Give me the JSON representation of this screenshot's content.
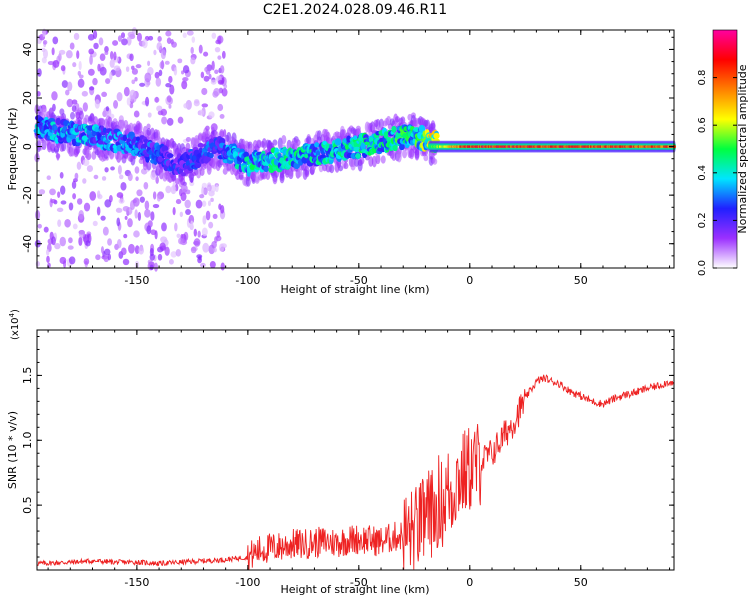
{
  "title": "C2E1.2024.028.09.46.R11",
  "chart_data": [
    {
      "type": "heatmap",
      "xlabel": "Height of straight line (km)",
      "ylabel": "Frequency (Hz)",
      "xlim": [
        -195,
        92
      ],
      "ylim": [
        -50,
        48
      ],
      "xticks": [
        -150,
        -100,
        -50,
        0,
        50
      ],
      "yticks": [
        -40,
        -20,
        0,
        20,
        40
      ],
      "colorbar": {
        "label": "Normalized spectral amplitude",
        "range": [
          0,
          1
        ],
        "ticks": [
          "0.0",
          "0.2",
          "0.4",
          "0.6",
          "0.8"
        ],
        "colors": [
          "#ffffff",
          "#9b30ff",
          "#2020ff",
          "#00e5ff",
          "#00ff40",
          "#ffff00",
          "#ff8000",
          "#ff0000",
          "#ff00a0"
        ]
      },
      "ridge": [
        {
          "x": -195,
          "freq": 8,
          "amp": 0.3
        },
        {
          "x": -175,
          "freq": 5,
          "amp": 0.3
        },
        {
          "x": -150,
          "freq": 1,
          "amp": 0.25
        },
        {
          "x": -130,
          "freq": -8,
          "amp": 0.2
        },
        {
          "x": -115,
          "freq": 0,
          "amp": 0.25
        },
        {
          "x": -100,
          "freq": -7,
          "amp": 0.35
        },
        {
          "x": -75,
          "freq": -4,
          "amp": 0.35
        },
        {
          "x": -50,
          "freq": 0,
          "amp": 0.35
        },
        {
          "x": -25,
          "freq": 5,
          "amp": 0.4
        },
        {
          "x": -18,
          "freq": 2,
          "amp": 0.5
        },
        {
          "x": 0,
          "freq": 0,
          "amp": 0.9
        },
        {
          "x": 92,
          "freq": 0,
          "amp": 0.85
        }
      ]
    },
    {
      "type": "line",
      "xlabel": "Height of straight line (km)",
      "ylabel": "SNR (10 * v/v)",
      "y_multiplier": "(x10",
      "y_multiplier_exp": "4",
      "y_multiplier_close": ")",
      "xlim": [
        -195,
        92
      ],
      "ylim": [
        0,
        1.85
      ],
      "xticks": [
        -150,
        -100,
        -50,
        0,
        50
      ],
      "yticks": [
        0.5,
        1.0,
        1.5
      ],
      "color": "#ee2222",
      "series": [
        {
          "x": [
            -195,
            -180,
            -170,
            -160,
            -150,
            -140,
            -130,
            -120,
            -110,
            -100,
            -95,
            -90,
            -85,
            -80,
            -75,
            -70,
            -65,
            -60,
            -55,
            -50,
            -45,
            -40,
            -35,
            -30,
            -25,
            -22,
            -20,
            -18,
            -16,
            -14,
            -12,
            -10,
            -8,
            -6,
            -4,
            -2,
            0,
            2,
            4,
            6,
            8,
            10,
            12,
            14,
            16,
            18,
            20,
            22,
            24,
            26,
            28,
            30,
            32,
            34,
            36,
            40,
            45,
            50,
            55,
            60,
            65,
            70,
            75,
            80,
            85,
            88,
            90,
            92
          ],
          "y": [
            0.05,
            0.06,
            0.07,
            0.06,
            0.06,
            0.05,
            0.06,
            0.07,
            0.08,
            0.1,
            0.15,
            0.17,
            0.18,
            0.2,
            0.2,
            0.21,
            0.22,
            0.21,
            0.23,
            0.24,
            0.23,
            0.22,
            0.25,
            0.27,
            0.3,
            0.35,
            0.4,
            0.45,
            0.42,
            0.55,
            0.5,
            0.62,
            0.58,
            0.7,
            0.72,
            0.75,
            0.78,
            0.8,
            0.82,
            0.85,
            0.88,
            0.9,
            0.95,
            1.0,
            1.05,
            1.1,
            1.15,
            1.22,
            1.28,
            1.35,
            1.4,
            1.45,
            1.47,
            1.48,
            1.46,
            1.44,
            1.38,
            1.34,
            1.3,
            1.28,
            1.32,
            1.35,
            1.37,
            1.4,
            1.42,
            1.44,
            1.45,
            1.43
          ]
        }
      ]
    }
  ]
}
